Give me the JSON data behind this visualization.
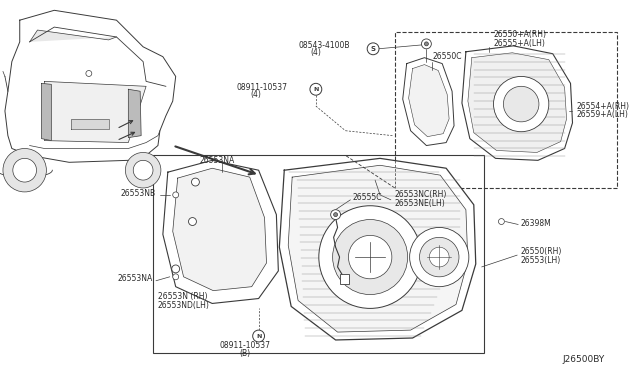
{
  "bg_color": "#ffffff",
  "line_color": "#3a3a3a",
  "text_color": "#2a2a2a",
  "diagram_id": "J26500BY",
  "labels": {
    "screw1": "08543-4100B",
    "screw1b": "(4)",
    "nut1": "08911-10537",
    "nut1b": "(4)",
    "nut2": "08911-10537",
    "nut2b": "(B)",
    "p26555C": "26555C",
    "p26553NA_top": "26553NA",
    "p26553NB_L": "26553NB",
    "p26553NB_R": "26553NB",
    "p26553NA_bot": "26553NA",
    "p26553N": "26553N (RH)",
    "p26553ND": "26553ND(LH)",
    "p26550C": "26550C",
    "p26554": "26554+A(RH)",
    "p26559": "26559+A(LH)",
    "p26553NC": "26553NC(RH)",
    "p26553NE": "26553NE(LH)",
    "p26550_top": "26550+A(RH)",
    "p26555_top": "26555+A(LH)",
    "p26550": "26550(RH)",
    "p26553": "26553(LH)",
    "p26398M": "26398M"
  }
}
